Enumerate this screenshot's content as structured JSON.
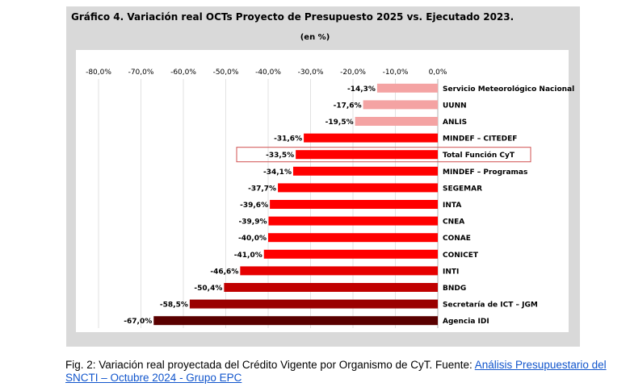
{
  "chart_data": {
    "type": "bar",
    "orientation": "horizontal",
    "title": "Gráfico 4. Variación real OCTs Proyecto de Presupuesto 2025 vs. Ejecutado 2023.",
    "subtitle": "(en %)",
    "xlim": [
      -80,
      0
    ],
    "x_ticks": [
      "-80,0%",
      "-70,0%",
      "-60,0%",
      "-50,0%",
      "-40,0%",
      "-30,0%",
      "-20,0%",
      "-10,0%",
      "0,0%"
    ],
    "x_tick_values": [
      -80,
      -70,
      -60,
      -50,
      -40,
      -30,
      -20,
      -10,
      0
    ],
    "grid": true,
    "categories": [
      "Servicio Meteorológico Nacional",
      "UUNN",
      "ANLIS",
      "MINDEF – CITEDEF",
      "Total Función CyT",
      "MINDEF – Programas",
      "SEGEMAR",
      "INTA",
      "CNEA",
      "CONAE",
      "CONICET",
      "INTI",
      "BNDG",
      "Secretaría de ICT – JGM",
      "Agencia IDI"
    ],
    "values": [
      -14.3,
      -17.6,
      -19.5,
      -31.6,
      -33.5,
      -34.1,
      -37.7,
      -39.6,
      -39.9,
      -40.0,
      -41.0,
      -46.6,
      -50.4,
      -58.5,
      -67.0
    ],
    "value_labels": [
      "-14,3%",
      "-17,6%",
      "-19,5%",
      "-31,6%",
      "-33,5%",
      "-34,1%",
      "-37,7%",
      "-39,6%",
      "-39,9%",
      "-40,0%",
      "-41,0%",
      "-46,6%",
      "-50,4%",
      "-58,5%",
      "-67,0%"
    ],
    "colors": [
      "#f4a3a3",
      "#f4a3a3",
      "#f4a3a3",
      "#ff0000",
      "#ff0000",
      "#ff0000",
      "#ff0000",
      "#ff0000",
      "#ff0000",
      "#ff0000",
      "#ff0000",
      "#e60000",
      "#c00000",
      "#9a0000",
      "#5a0000"
    ],
    "highlighted_category": "Total Función CyT",
    "highlight_color": "#d05050"
  },
  "caption": {
    "text": "Fig. 2: Variación real proyectada del Crédito Vigente por Organismo de CyT. Fuente: ",
    "link_text": "Análisis Presupuestario del SNCTI – Octubre 2024 - Grupo EPC"
  }
}
